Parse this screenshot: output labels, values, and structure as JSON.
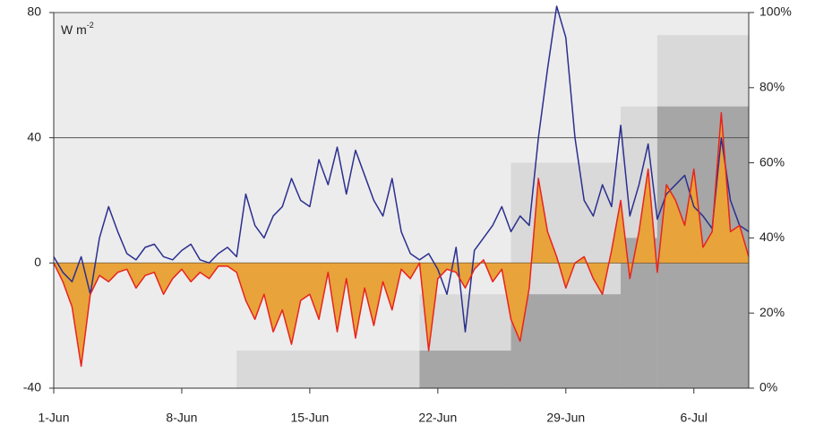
{
  "chart_data": {
    "type": "line",
    "annotation": {
      "text": "W m",
      "sup": "-2"
    },
    "background": "#ececec",
    "x": [
      0,
      0.5,
      1,
      1.5,
      2,
      2.5,
      3,
      3.5,
      4,
      4.5,
      5,
      5.5,
      6,
      6.5,
      7,
      7.5,
      8,
      8.5,
      9,
      9.5,
      10,
      10.5,
      11,
      11.5,
      12,
      12.5,
      13,
      13.5,
      14,
      14.5,
      15,
      15.5,
      16,
      16.5,
      17,
      17.5,
      18,
      18.5,
      19,
      19.5,
      20,
      20.5,
      21,
      21.5,
      22,
      22.5,
      23,
      23.5,
      24,
      24.5,
      25,
      25.5,
      26,
      26.5,
      27,
      27.5,
      28,
      28.5,
      29,
      29.5,
      30,
      30.5,
      31,
      31.5,
      32,
      32.5,
      33,
      33.5,
      34,
      34.5,
      35,
      35.5,
      36,
      36.5,
      37,
      37.5,
      38
    ],
    "xlim": [
      0,
      38
    ],
    "xticks": [
      {
        "value": 0,
        "label": "1-Jun"
      },
      {
        "value": 7,
        "label": "8-Jun"
      },
      {
        "value": 14,
        "label": "15-Jun"
      },
      {
        "value": 21,
        "label": "22-Jun"
      },
      {
        "value": 28,
        "label": "29-Jun"
      },
      {
        "value": 35,
        "label": "6-Jul"
      }
    ],
    "ylim": [
      -40,
      80
    ],
    "yticks": [
      -40,
      0,
      40,
      80
    ],
    "y2lim": [
      0,
      100
    ],
    "y2ticks": [
      {
        "value": 0,
        "label": "0%"
      },
      {
        "value": 20,
        "label": "20%"
      },
      {
        "value": 40,
        "label": "40%"
      },
      {
        "value": 60,
        "label": "60%"
      },
      {
        "value": 80,
        "label": "80%"
      },
      {
        "value": 100,
        "label": "100%"
      }
    ],
    "grid": true,
    "series": [
      {
        "color": "#2b2f8f",
        "values": [
          2,
          -3,
          -6,
          2,
          -10,
          8,
          18,
          10,
          3,
          1,
          5,
          6,
          2,
          1,
          4,
          6,
          1,
          0,
          3,
          5,
          2,
          22,
          12,
          8,
          15,
          18,
          27,
          20,
          18,
          33,
          25,
          37,
          22,
          36,
          28,
          20,
          15,
          27,
          10,
          3,
          1,
          3,
          -2,
          -10,
          5,
          -22,
          4,
          8,
          12,
          18,
          10,
          15,
          12,
          40,
          62,
          82,
          72,
          40,
          20,
          15,
          25,
          18,
          44,
          15,
          25,
          38,
          14,
          22,
          25,
          28,
          18,
          15,
          11,
          40,
          20,
          12,
          10
        ]
      },
      {
        "color": "#e8231e",
        "fill": "#e8a33a",
        "values": [
          0,
          -6,
          -14,
          -33,
          -10,
          -4,
          -6,
          -3,
          -2,
          -8,
          -4,
          -3,
          -10,
          -5,
          -2,
          -6,
          -3,
          -5,
          -1,
          -1,
          -3,
          -12,
          -18,
          -10,
          -22,
          -15,
          -26,
          -12,
          -10,
          -18,
          -3,
          -22,
          -5,
          -24,
          -8,
          -20,
          -6,
          -15,
          -2,
          -5,
          0,
          -28,
          -5,
          -2,
          -3,
          -8,
          -2,
          1,
          -6,
          -2,
          -18,
          -25,
          -8,
          27,
          10,
          2,
          -8,
          0,
          2,
          -5,
          -10,
          4,
          20,
          -5,
          10,
          30,
          -3,
          25,
          20,
          12,
          30,
          5,
          10,
          48,
          10,
          12,
          2
        ]
      }
    ],
    "steps": [
      {
        "color": "#d9d9d9",
        "axis": "y2",
        "bins": [
          10,
          20,
          25,
          31,
          33,
          38
        ],
        "values": [
          10,
          25,
          60,
          75,
          94
        ]
      },
      {
        "color": "#a6a6a6",
        "axis": "y2",
        "bins": [
          20,
          25,
          31,
          33,
          38
        ],
        "values": [
          10,
          25,
          40,
          75
        ]
      }
    ]
  }
}
